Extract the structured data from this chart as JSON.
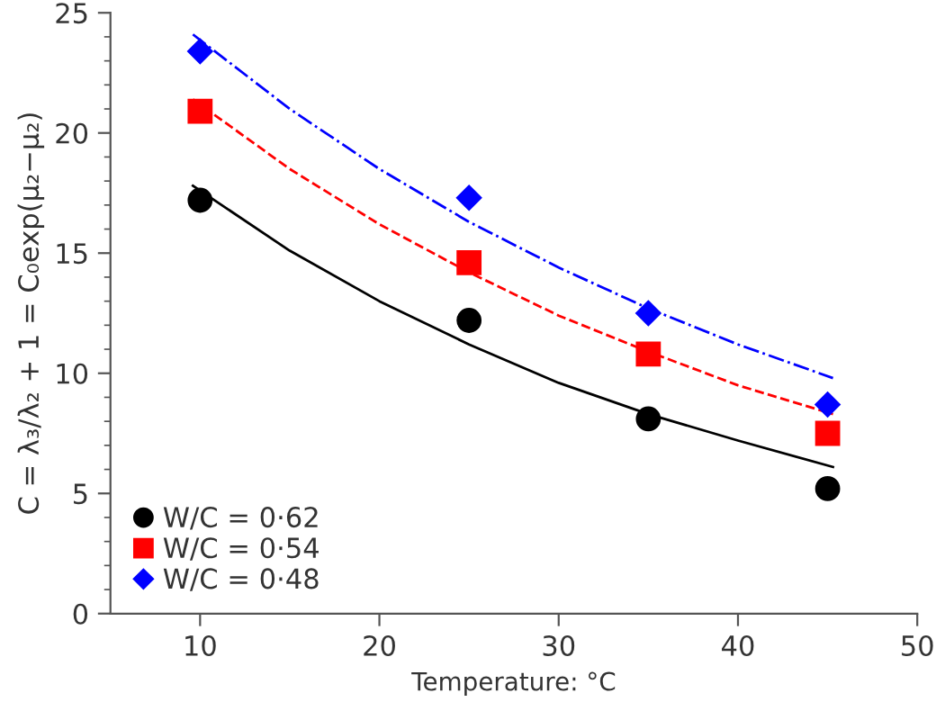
{
  "chart_data": {
    "type": "scatter",
    "xlabel": "Temperature: °C",
    "ylabel": "C = λ₃/λ₂ + 1 = C₀exp(μ₂−μ₂)",
    "xlim": [
      5,
      50
    ],
    "xticks": [
      10,
      20,
      30,
      40,
      50
    ],
    "ylim": [
      0,
      25
    ],
    "yticks": [
      0,
      {
        "value": 1,
        "label": null
      },
      {
        "value": 2,
        "label": null
      },
      {
        "value": 3,
        "label": null
      },
      {
        "value": 4,
        "label": null
      },
      5,
      {
        "value": 6,
        "label": null
      },
      {
        "value": 7,
        "label": null
      },
      {
        "value": 8,
        "label": null
      },
      {
        "value": 9,
        "label": null
      },
      10,
      {
        "value": 11,
        "label": null
      },
      {
        "value": 12,
        "label": null
      },
      {
        "value": 13,
        "label": null
      },
      {
        "value": 14,
        "label": null
      },
      15,
      {
        "value": 16,
        "label": null
      },
      {
        "value": 17,
        "label": null
      },
      {
        "value": 18,
        "label": null
      },
      {
        "value": 19,
        "label": null
      },
      20,
      {
        "value": 21,
        "label": null
      },
      {
        "value": 22,
        "label": null
      },
      {
        "value": 23,
        "label": null
      },
      {
        "value": 24,
        "label": null
      },
      25
    ],
    "grid": false,
    "legend": "bottom left",
    "series": [
      {
        "name": "W/C = 0·62",
        "marker": "circle",
        "color": "#000000",
        "x": [
          10,
          25,
          35,
          45
        ],
        "values": [
          17.2,
          12.2,
          8.1,
          5.2
        ]
      },
      {
        "name": "W/C = 0·54",
        "marker": "square",
        "color": "#ff0000",
        "x": [
          10,
          25,
          35,
          45
        ],
        "values": [
          20.9,
          14.6,
          10.8,
          7.5
        ]
      },
      {
        "name": "W/C = 0·48",
        "marker": "diamond",
        "color": "#0000ff",
        "x": [
          10,
          25,
          35,
          45
        ],
        "values": [
          23.4,
          17.3,
          12.5,
          8.7
        ]
      },
      {
        "type": "line",
        "line_style": "solid",
        "color": "#000000",
        "x": [
          9.6,
          15,
          20,
          25,
          30,
          35,
          40,
          45.3
        ],
        "values": [
          17.8,
          15.1,
          13.0,
          11.2,
          9.6,
          8.3,
          7.2,
          6.1
        ]
      },
      {
        "type": "line",
        "line_style": "dashed",
        "color": "#ff0000",
        "x": [
          9.6,
          15,
          20,
          25,
          30,
          35,
          40,
          45.3
        ],
        "values": [
          21.4,
          18.5,
          16.2,
          14.2,
          12.4,
          10.9,
          9.5,
          8.3
        ]
      },
      {
        "type": "line",
        "line_style": "dashdot",
        "color": "#0000ff",
        "x": [
          9.6,
          15,
          20,
          25,
          30,
          35,
          40,
          45.3
        ],
        "values": [
          24.1,
          21.0,
          18.5,
          16.3,
          14.4,
          12.7,
          11.2,
          9.8
        ]
      }
    ]
  }
}
